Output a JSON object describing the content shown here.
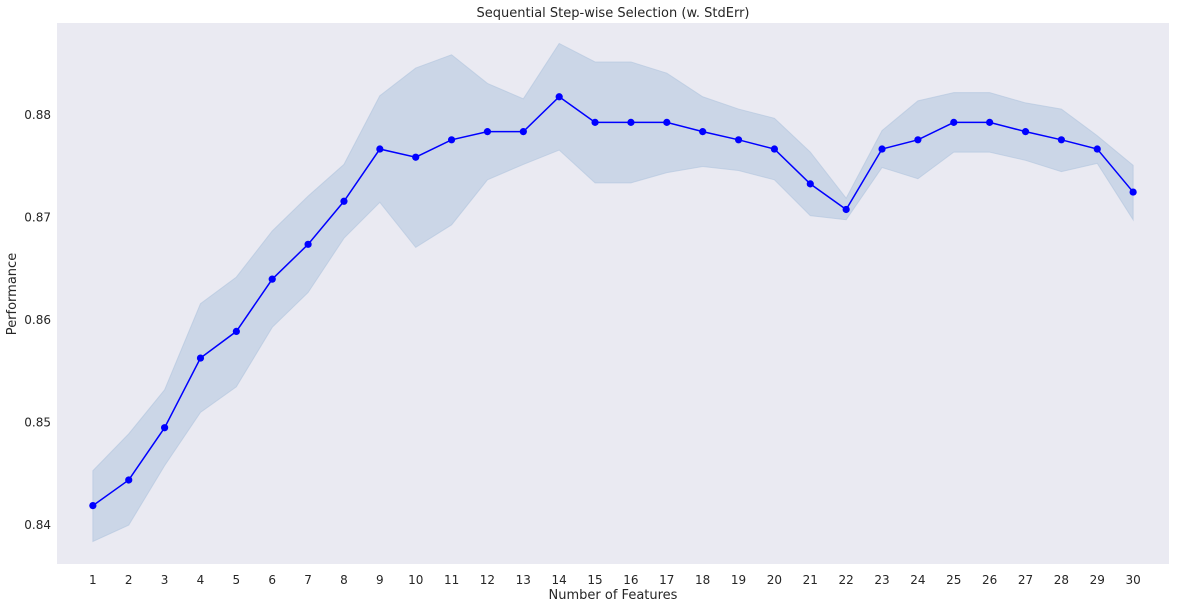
{
  "chart_data": {
    "type": "line",
    "title": "Sequential Step-wise Selection (w. StdErr)",
    "xlabel": "Number of Features",
    "ylabel": "Performance",
    "grid": false,
    "ylim": [
      0.8362,
      0.889
    ],
    "xlim": [
      0,
      31
    ],
    "x": [
      1,
      2,
      3,
      4,
      5,
      6,
      7,
      8,
      9,
      10,
      11,
      12,
      13,
      14,
      15,
      16,
      17,
      18,
      19,
      20,
      21,
      22,
      23,
      24,
      25,
      26,
      27,
      28,
      29,
      30
    ],
    "yticks": [
      0.84,
      0.85,
      0.86,
      0.87,
      0.88
    ],
    "ytick_labels": [
      "0.84",
      "0.85",
      "0.86",
      "0.87",
      "0.88"
    ],
    "xtick_labels": [
      "1",
      "2",
      "3",
      "4",
      "5",
      "6",
      "7",
      "8",
      "9",
      "10",
      "11",
      "12",
      "13",
      "14",
      "15",
      "16",
      "17",
      "18",
      "19",
      "20",
      "21",
      "22",
      "23",
      "24",
      "25",
      "26",
      "27",
      "28",
      "29",
      "30"
    ],
    "series": [
      {
        "name": "",
        "color": "#0000ff",
        "band_color": "#b0c4de",
        "values": [
          0.8419,
          0.8444,
          0.8495,
          0.8563,
          0.8589,
          0.864,
          0.8674,
          0.8716,
          0.8767,
          0.8759,
          0.8776,
          0.8784,
          0.8784,
          0.8818,
          0.8793,
          0.8793,
          0.8793,
          0.8784,
          0.8776,
          0.8767,
          0.8733,
          0.8708,
          0.8767,
          0.8776,
          0.8793,
          0.8793,
          0.8784,
          0.8776,
          0.8767,
          0.8725
        ],
        "upper": [
          0.8453,
          0.8489,
          0.8532,
          0.8616,
          0.8642,
          0.8687,
          0.8721,
          0.8752,
          0.8819,
          0.8846,
          0.8859,
          0.8831,
          0.8816,
          0.887,
          0.8852,
          0.8852,
          0.8841,
          0.8818,
          0.8806,
          0.8797,
          0.8764,
          0.8719,
          0.8785,
          0.8814,
          0.8822,
          0.8822,
          0.8812,
          0.8806,
          0.878,
          0.8751
        ],
        "lower": [
          0.8384,
          0.84,
          0.8458,
          0.851,
          0.8535,
          0.8593,
          0.8627,
          0.868,
          0.8715,
          0.8671,
          0.8693,
          0.8737,
          0.8752,
          0.8766,
          0.8734,
          0.8734,
          0.8744,
          0.875,
          0.8746,
          0.8737,
          0.8702,
          0.8698,
          0.8749,
          0.8738,
          0.8764,
          0.8764,
          0.8756,
          0.8745,
          0.8753,
          0.8698
        ]
      }
    ]
  }
}
